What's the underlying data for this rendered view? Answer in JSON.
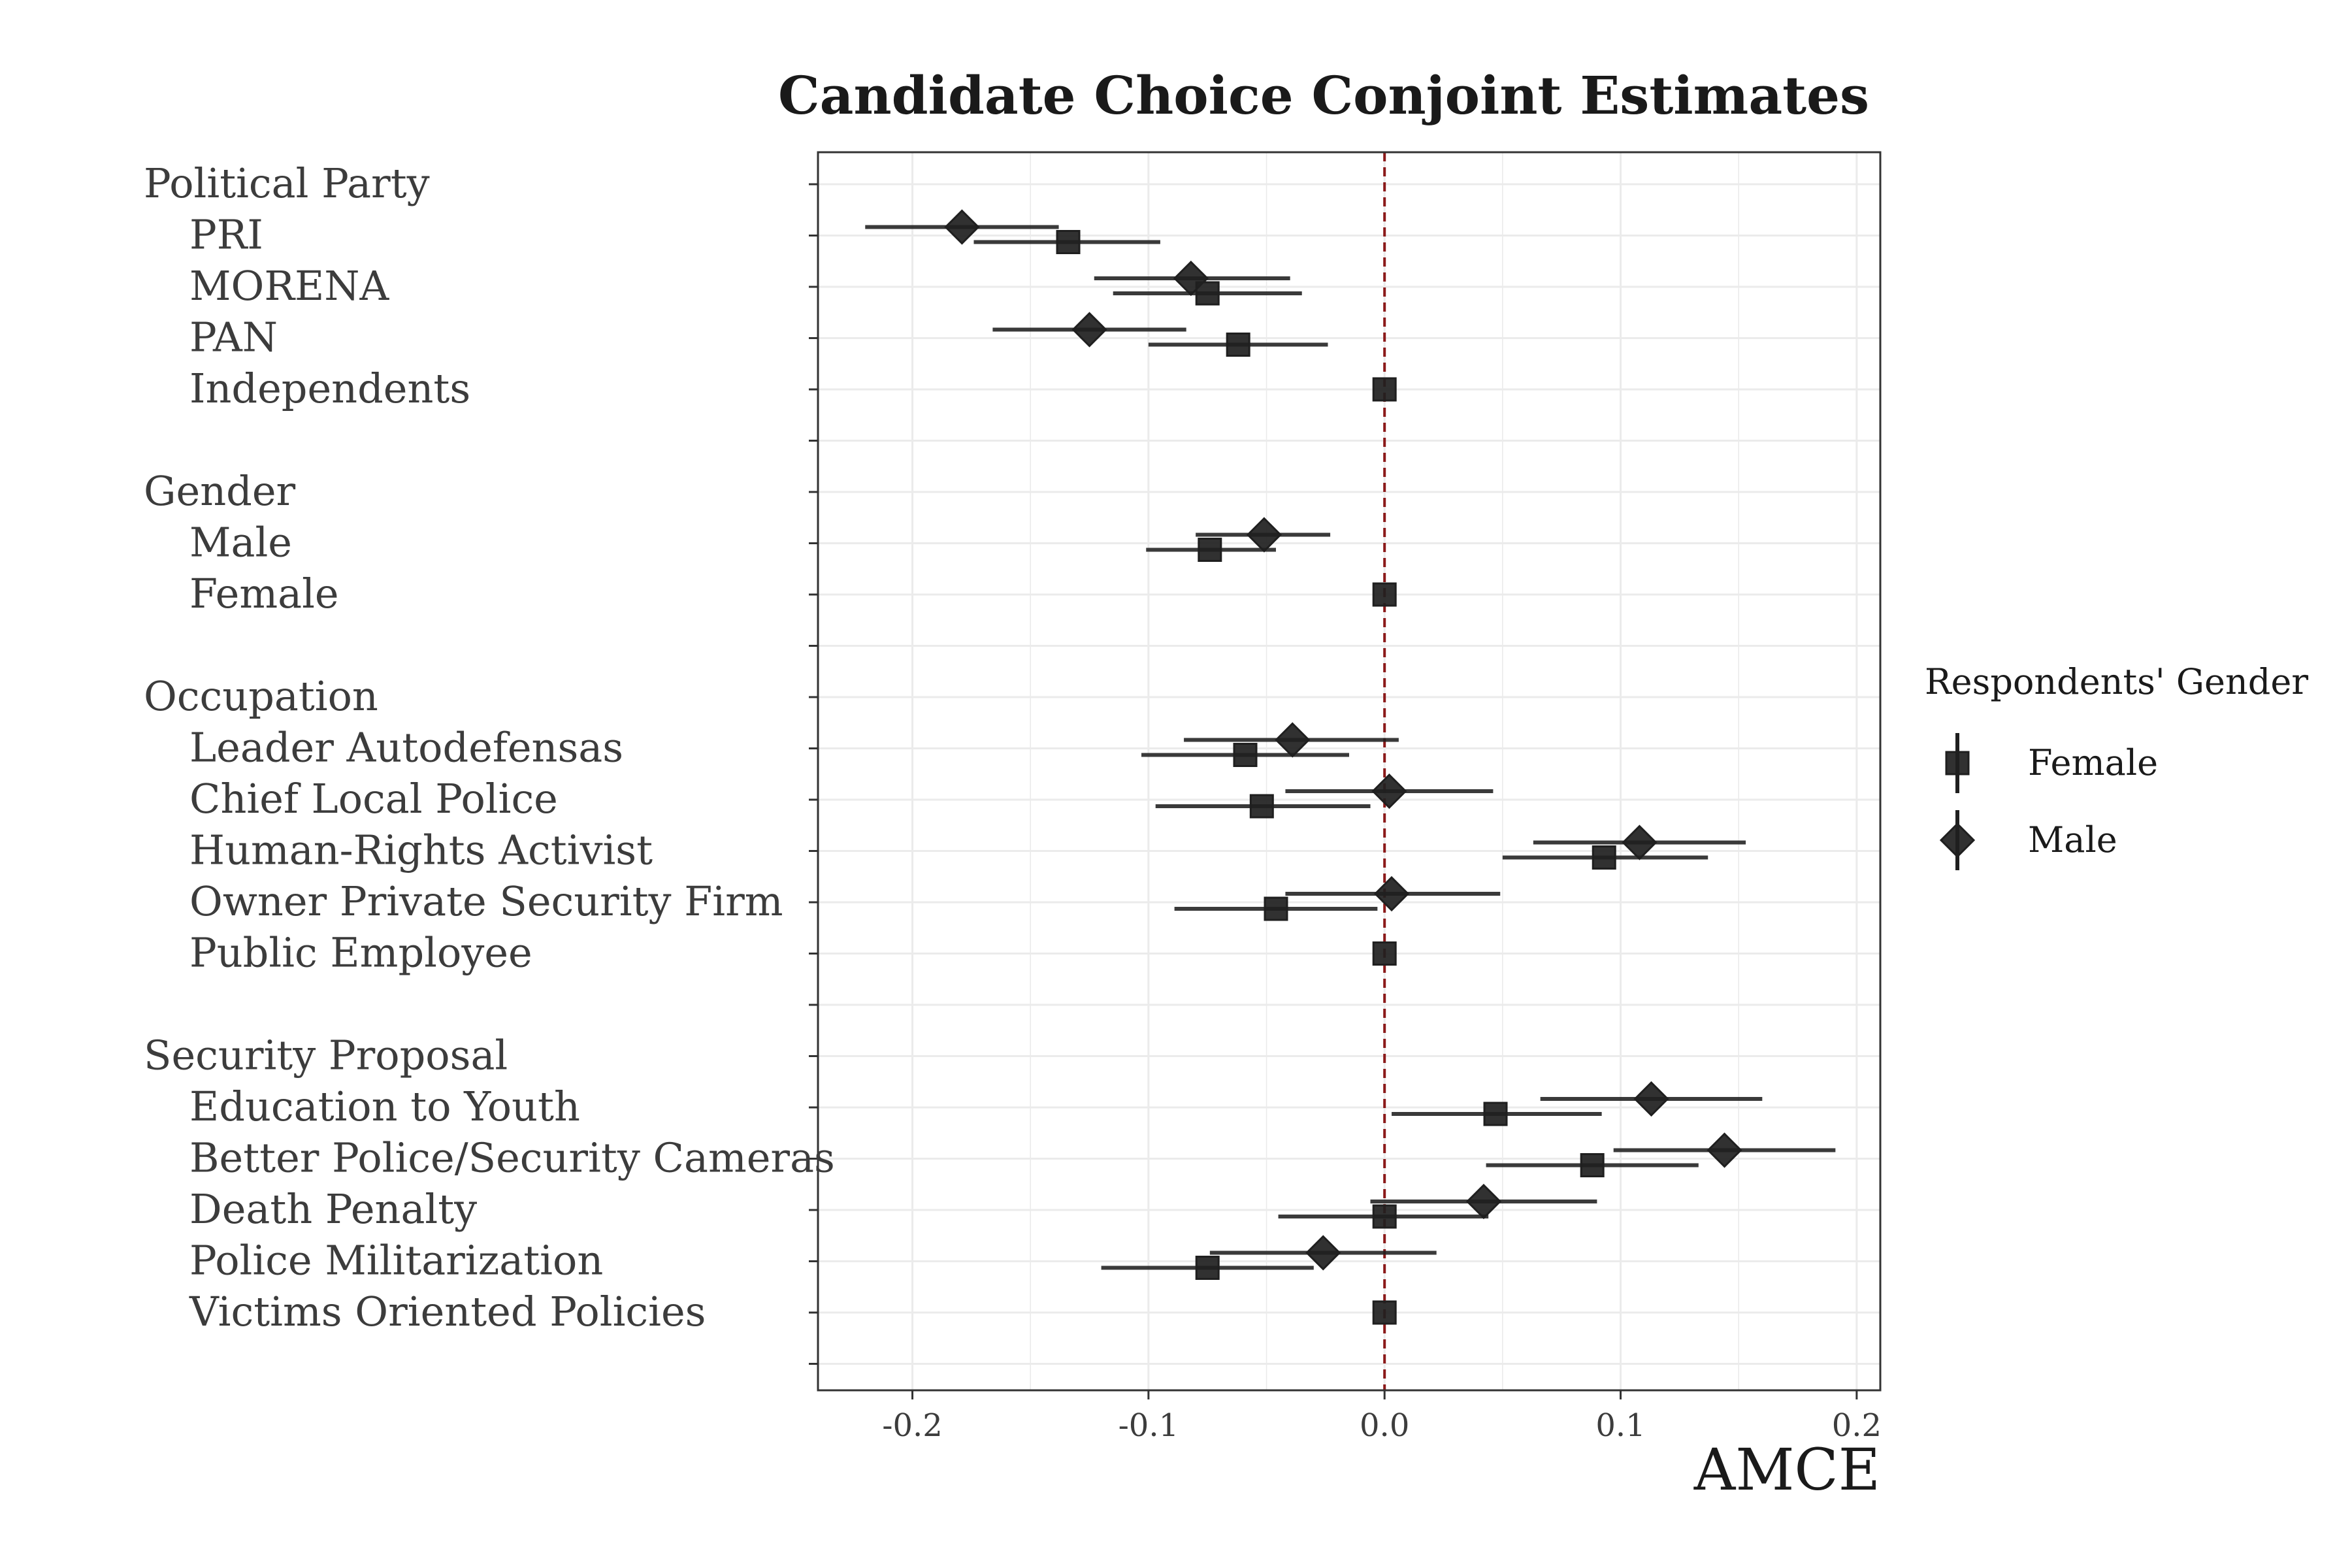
{
  "chart_data": {
    "type": "scatter",
    "title": "Candidate Choice Conjoint Estimates",
    "xlabel": "AMCE",
    "ylabel": "",
    "xlim": [
      -0.24,
      0.21
    ],
    "x_ticks": [
      "-0.2",
      "-0.1",
      "0.0",
      "0.1",
      "0.2"
    ],
    "x_tick_values": [
      -0.2,
      -0.1,
      0.0,
      0.1,
      0.2
    ],
    "reference_line": {
      "x": 0,
      "style": "dashed",
      "color": "#8b1a1a"
    },
    "grid": true,
    "legend": {
      "title": "Respondents' Gender",
      "placement": "right",
      "entries": [
        "Female",
        "Male"
      ]
    },
    "rows": [
      {
        "label": "Political Party",
        "header": true
      },
      {
        "label": "PRI",
        "female": {
          "est": -0.134,
          "lo": -0.174,
          "hi": -0.095
        },
        "male": {
          "est": -0.179,
          "lo": -0.22,
          "hi": -0.138
        }
      },
      {
        "label": "MORENA",
        "female": {
          "est": -0.075,
          "lo": -0.115,
          "hi": -0.035
        },
        "male": {
          "est": -0.082,
          "lo": -0.123,
          "hi": -0.04
        }
      },
      {
        "label": "PAN",
        "female": {
          "est": -0.062,
          "lo": -0.1,
          "hi": -0.024
        },
        "male": {
          "est": -0.125,
          "lo": -0.166,
          "hi": -0.084
        }
      },
      {
        "label": "Independents",
        "female": {
          "est": 0.0,
          "lo": 0.0,
          "hi": 0.0
        },
        "male": null
      },
      {
        "label": "",
        "spacer": true
      },
      {
        "label": "Gender",
        "header": true
      },
      {
        "label": "Male",
        "female": {
          "est": -0.074,
          "lo": -0.101,
          "hi": -0.046
        },
        "male": {
          "est": -0.051,
          "lo": -0.08,
          "hi": -0.023
        }
      },
      {
        "label": "Female",
        "female": {
          "est": 0.0,
          "lo": 0.0,
          "hi": 0.0
        },
        "male": null
      },
      {
        "label": "",
        "spacer": true
      },
      {
        "label": "Occupation",
        "header": true
      },
      {
        "label": "Leader Autodefensas",
        "female": {
          "est": -0.059,
          "lo": -0.103,
          "hi": -0.015
        },
        "male": {
          "est": -0.039,
          "lo": -0.085,
          "hi": 0.006
        }
      },
      {
        "label": "Chief Local Police",
        "female": {
          "est": -0.052,
          "lo": -0.097,
          "hi": -0.006
        },
        "male": {
          "est": 0.002,
          "lo": -0.042,
          "hi": 0.046
        }
      },
      {
        "label": "Human-Rights Activist",
        "female": {
          "est": 0.093,
          "lo": 0.05,
          "hi": 0.137
        },
        "male": {
          "est": 0.108,
          "lo": 0.063,
          "hi": 0.153
        }
      },
      {
        "label": "Owner Private Security Firm",
        "female": {
          "est": -0.046,
          "lo": -0.089,
          "hi": -0.003
        },
        "male": {
          "est": 0.003,
          "lo": -0.042,
          "hi": 0.049
        }
      },
      {
        "label": "Public Employee",
        "female": {
          "est": 0.0,
          "lo": 0.0,
          "hi": 0.0
        },
        "male": null
      },
      {
        "label": "",
        "spacer": true
      },
      {
        "label": "Security Proposal",
        "header": true
      },
      {
        "label": "Education to Youth",
        "female": {
          "est": 0.047,
          "lo": 0.003,
          "hi": 0.092
        },
        "male": {
          "est": 0.113,
          "lo": 0.066,
          "hi": 0.16
        }
      },
      {
        "label": "Better Police/Security Cameras",
        "female": {
          "est": 0.088,
          "lo": 0.043,
          "hi": 0.133
        },
        "male": {
          "est": 0.144,
          "lo": 0.097,
          "hi": 0.191
        }
      },
      {
        "label": "Death Penalty",
        "female": {
          "est": 0.0,
          "lo": -0.045,
          "hi": 0.044
        },
        "male": {
          "est": 0.042,
          "lo": -0.006,
          "hi": 0.09
        }
      },
      {
        "label": "Police Militarization",
        "female": {
          "est": -0.075,
          "lo": -0.12,
          "hi": -0.03
        },
        "male": {
          "est": -0.026,
          "lo": -0.074,
          "hi": 0.022
        }
      },
      {
        "label": "Victims Oriented Policies",
        "female": {
          "est": 0.0,
          "lo": 0.0,
          "hi": 0.0
        },
        "male": null
      },
      {
        "label": "",
        "spacer": true
      }
    ]
  },
  "colors": {
    "marker": "#1f1f1f",
    "grid": "#ebebeb",
    "panel_border": "#333333",
    "reference_line": "#8b1a1a",
    "text": "#3c3c3c",
    "title": "#1a1a1a"
  }
}
